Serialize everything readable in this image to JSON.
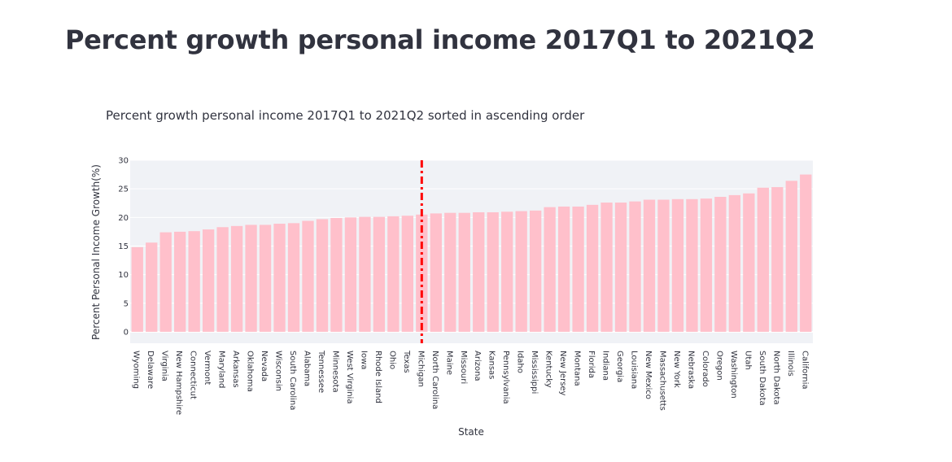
{
  "page": {
    "title": "Percent growth personal income 2017Q1 to 2021Q2"
  },
  "chart_data": {
    "type": "bar",
    "title": "Percent growth personal income 2017Q1 to 2021Q2 sorted in ascending order",
    "xlabel": "State",
    "ylabel": "Percent Personal Income Growth(%)",
    "ylim": [
      -2,
      30
    ],
    "yticks": [
      0,
      5,
      10,
      15,
      20,
      25,
      30
    ],
    "grid": true,
    "bar_color": "#ffc0cb",
    "plot_bg": "#f0f2f6",
    "categories": [
      "Wyoming",
      "Delaware",
      "Virginia",
      "New Hampshire",
      "Connecticut",
      "Vermont",
      "Maryland",
      "Arkansas",
      "Oklahoma",
      "Nevada",
      "Wisconsin",
      "South Carolina",
      "Alabama",
      "Tennessee",
      "Minnesota",
      "West Virginia",
      "Iowa",
      "Rhode Island",
      "Ohio",
      "Texas",
      "Michigan",
      "North Carolina",
      "Maine",
      "Missouri",
      "Arizona",
      "Kansas",
      "Pennsylvania",
      "Idaho",
      "Mississippi",
      "Kentucky",
      "New Jersey",
      "Montana",
      "Florida",
      "Indiana",
      "Georgia",
      "Louisiana",
      "New Mexico",
      "Massachusetts",
      "New York",
      "Nebraska",
      "Colorado",
      "Oregon",
      "Washington",
      "Utah",
      "South Dakota",
      "North Dakota",
      "Illinois",
      "California"
    ],
    "values": [
      14.8,
      15.6,
      17.4,
      17.5,
      17.6,
      17.9,
      18.3,
      18.5,
      18.7,
      18.7,
      18.9,
      19.0,
      19.4,
      19.7,
      19.9,
      20.0,
      20.1,
      20.1,
      20.2,
      20.3,
      20.5,
      20.7,
      20.8,
      20.8,
      20.9,
      20.9,
      21.0,
      21.1,
      21.2,
      21.8,
      21.9,
      21.9,
      22.2,
      22.6,
      22.6,
      22.8,
      23.1,
      23.1,
      23.2,
      23.2,
      23.3,
      23.6,
      23.9,
      24.2,
      25.2,
      25.3,
      26.4,
      27.5
    ],
    "reference_line": {
      "category": "Michigan",
      "style": "dashdot",
      "color": "#ff0000"
    }
  }
}
